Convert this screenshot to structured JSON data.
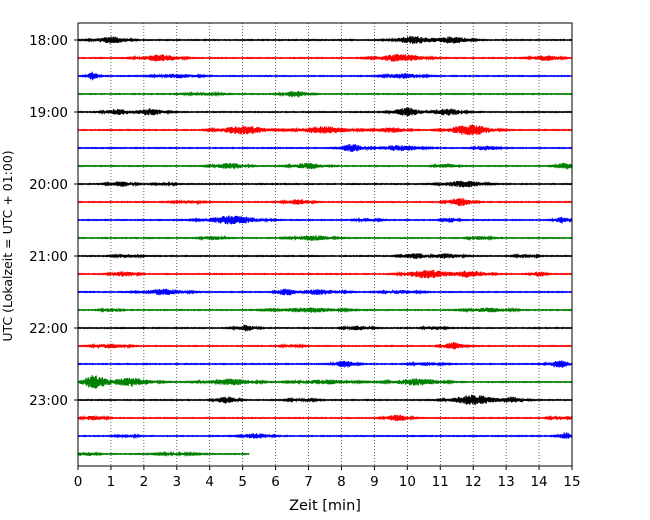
{
  "chart_data": {
    "type": "line",
    "title": "",
    "xlabel": "Zeit  [min]",
    "ylabel": "UTC (Lokalzeit = UTC + 01:00)",
    "xlim": [
      0,
      15
    ],
    "x_ticks": [
      "0",
      "1",
      "2",
      "3",
      "4",
      "5",
      "6",
      "7",
      "8",
      "9",
      "10",
      "11",
      "12",
      "13",
      "14",
      "15"
    ],
    "y_ticks": [
      "18:00",
      "19:00",
      "20:00",
      "21:00",
      "22:00",
      "23:00"
    ],
    "grid": "vertical dotted",
    "line_interval_min": 15,
    "colors": [
      "#000000",
      "#ff0000",
      "#0000ff",
      "#008000"
    ],
    "traces": [
      {
        "start": "18:00",
        "end_min": 15,
        "bursts": [
          [
            1.0,
            0.45,
            0.8
          ],
          [
            10.2,
            0.55,
            0.9
          ],
          [
            11.4,
            0.45,
            0.8
          ]
        ]
      },
      {
        "start": "18:15",
        "end_min": 15,
        "bursts": [
          [
            2.5,
            0.55,
            0.8
          ],
          [
            9.8,
            0.65,
            0.9
          ],
          [
            14.2,
            0.4,
            0.6
          ]
        ]
      },
      {
        "start": "18:30",
        "end_min": 15,
        "bursts": [
          [
            0.45,
            0.15,
            1.0
          ],
          [
            3.0,
            0.6,
            0.45
          ],
          [
            9.9,
            0.5,
            0.6
          ]
        ]
      },
      {
        "start": "18:45",
        "end_min": 15,
        "bursts": [
          [
            6.6,
            0.35,
            0.8
          ],
          [
            3.8,
            0.5,
            0.3
          ]
        ]
      },
      {
        "start": "19:00",
        "end_min": 15,
        "bursts": [
          [
            1.2,
            0.35,
            0.7
          ],
          [
            2.2,
            0.4,
            0.8
          ],
          [
            10.0,
            0.4,
            1.0
          ],
          [
            11.2,
            0.45,
            0.8
          ]
        ]
      },
      {
        "start": "19:15",
        "end_min": 15,
        "bursts": [
          [
            5.0,
            0.7,
            1.0
          ],
          [
            7.5,
            0.7,
            0.9
          ],
          [
            11.9,
            0.6,
            1.3
          ],
          [
            9.5,
            0.45,
            0.6
          ]
        ]
      },
      {
        "start": "19:30",
        "end_min": 15,
        "bursts": [
          [
            8.3,
            0.3,
            1.0
          ],
          [
            9.8,
            0.6,
            0.7
          ],
          [
            12.4,
            0.3,
            0.6
          ]
        ]
      },
      {
        "start": "19:45",
        "end_min": 15,
        "bursts": [
          [
            4.6,
            0.45,
            0.7
          ],
          [
            7.0,
            0.45,
            0.7
          ],
          [
            14.8,
            0.25,
            0.8
          ],
          [
            11.2,
            0.3,
            0.5
          ]
        ]
      },
      {
        "start": "20:00",
        "end_min": 15,
        "bursts": [
          [
            1.3,
            0.35,
            0.6
          ],
          [
            11.7,
            0.55,
            0.8
          ],
          [
            2.6,
            0.3,
            0.3
          ]
        ]
      },
      {
        "start": "20:15",
        "end_min": 15,
        "bursts": [
          [
            6.7,
            0.35,
            0.6
          ],
          [
            11.6,
            0.35,
            0.9
          ],
          [
            3.3,
            0.4,
            0.3
          ]
        ]
      },
      {
        "start": "20:30",
        "end_min": 15,
        "bursts": [
          [
            4.7,
            0.75,
            1.0
          ],
          [
            14.7,
            0.2,
            0.8
          ],
          [
            11.3,
            0.2,
            0.6
          ],
          [
            8.8,
            0.3,
            0.4
          ]
        ]
      },
      {
        "start": "20:45",
        "end_min": 15,
        "bursts": [
          [
            4.1,
            0.3,
            0.5
          ],
          [
            7.1,
            0.55,
            0.6
          ],
          [
            12.2,
            0.3,
            0.4
          ]
        ]
      },
      {
        "start": "21:00",
        "end_min": 15,
        "bursts": [
          [
            10.2,
            0.35,
            0.7
          ],
          [
            11.2,
            0.4,
            0.6
          ],
          [
            1.5,
            0.35,
            0.4
          ],
          [
            13.6,
            0.3,
            0.4
          ]
        ]
      },
      {
        "start": "21:15",
        "end_min": 15,
        "bursts": [
          [
            1.4,
            0.35,
            0.6
          ],
          [
            10.6,
            0.6,
            1.0
          ],
          [
            11.9,
            0.5,
            0.8
          ],
          [
            14.0,
            0.2,
            0.6
          ]
        ]
      },
      {
        "start": "21:30",
        "end_min": 15,
        "bursts": [
          [
            2.6,
            0.6,
            0.7
          ],
          [
            6.3,
            0.25,
            0.8
          ],
          [
            7.3,
            0.6,
            0.6
          ],
          [
            9.8,
            0.5,
            0.4
          ]
        ]
      },
      {
        "start": "21:45",
        "end_min": 15,
        "bursts": [
          [
            7.0,
            0.9,
            0.55
          ],
          [
            12.5,
            0.6,
            0.5
          ],
          [
            1.0,
            0.25,
            0.4
          ]
        ]
      },
      {
        "start": "22:00",
        "end_min": 15,
        "bursts": [
          [
            5.1,
            0.3,
            0.7
          ],
          [
            8.5,
            0.35,
            0.5
          ],
          [
            10.8,
            0.3,
            0.4
          ]
        ]
      },
      {
        "start": "22:15",
        "end_min": 15,
        "bursts": [
          [
            1.0,
            0.45,
            0.5
          ],
          [
            11.4,
            0.3,
            0.8
          ],
          [
            6.5,
            0.3,
            0.3
          ]
        ]
      },
      {
        "start": "22:30",
        "end_min": 15,
        "bursts": [
          [
            8.1,
            0.3,
            0.8
          ],
          [
            14.6,
            0.3,
            0.9
          ],
          [
            10.6,
            0.4,
            0.4
          ]
        ]
      },
      {
        "start": "22:45",
        "end_min": 15,
        "bursts": [
          [
            0.5,
            0.35,
            1.6
          ],
          [
            1.6,
            0.6,
            1.0
          ],
          [
            4.6,
            0.7,
            0.75
          ],
          [
            10.3,
            0.7,
            0.8
          ],
          [
            7.5,
            0.8,
            0.5
          ]
        ]
      },
      {
        "start": "23:00",
        "end_min": 15,
        "bursts": [
          [
            4.5,
            0.3,
            0.8
          ],
          [
            12.0,
            0.6,
            1.2
          ],
          [
            13.2,
            0.35,
            0.7
          ],
          [
            6.8,
            0.4,
            0.3
          ]
        ]
      },
      {
        "start": "23:15",
        "end_min": 15,
        "bursts": [
          [
            0.5,
            0.3,
            0.6
          ],
          [
            9.7,
            0.35,
            0.7
          ],
          [
            14.6,
            0.25,
            0.5
          ]
        ]
      },
      {
        "start": "23:30",
        "end_min": 15,
        "bursts": [
          [
            5.4,
            0.4,
            0.6
          ],
          [
            14.8,
            0.2,
            0.8
          ],
          [
            1.5,
            0.3,
            0.3
          ]
        ]
      },
      {
        "start": "23:45",
        "end_min": 5.2,
        "bursts": [
          [
            0.3,
            0.25,
            0.4
          ],
          [
            3.0,
            0.6,
            0.2
          ]
        ]
      }
    ]
  }
}
